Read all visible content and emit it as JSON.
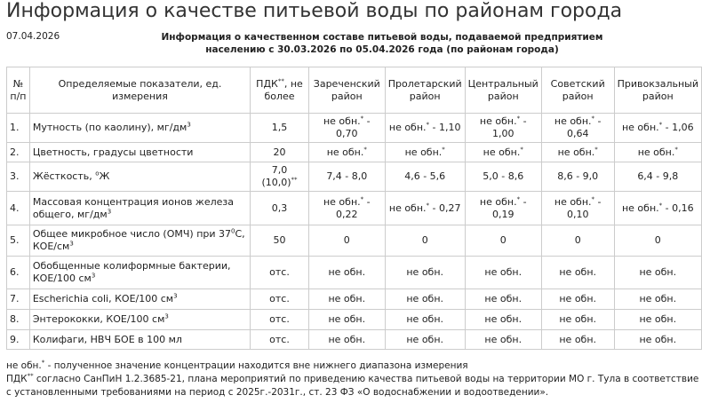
{
  "header": {
    "title": "Информация о качестве питьевой воды по районам города",
    "date": "07.04.2026",
    "subtitle": "Информация о качественном составе питьевой воды, подаваемой предприятием населению с 30.03.2026 по 05.04.2026 года (по районам города)"
  },
  "table": {
    "columns": [
      [
        "№ п/п"
      ],
      [
        "Определяемые показатели, ед. измерения"
      ],
      [
        "ПДК",
        {
          "sup": "**"
        },
        ", не более"
      ],
      [
        "Зареченский район"
      ],
      [
        "Пролетарский район"
      ],
      [
        "Центральный район"
      ],
      [
        "Советский район"
      ],
      [
        "Привокзальный район"
      ]
    ],
    "rows": [
      [
        [
          "1."
        ],
        [
          "Мутность (по каолину), мг/дм",
          {
            "sup": "3"
          }
        ],
        [
          "1,5"
        ],
        [
          "не обн.",
          {
            "sup": "*"
          },
          " - 0,70"
        ],
        [
          "не обн.",
          {
            "sup": "*"
          },
          " - 1,10"
        ],
        [
          "не обн.",
          {
            "sup": "*"
          },
          " - 1,00"
        ],
        [
          "не обн.",
          {
            "sup": "*"
          },
          " - 0,64"
        ],
        [
          "не обн.",
          {
            "sup": "*"
          },
          " - 1,06"
        ]
      ],
      [
        [
          "2."
        ],
        [
          "Цветность, градусы цветности"
        ],
        [
          "20"
        ],
        [
          "не обн.",
          {
            "sup": "*"
          }
        ],
        [
          "не обн.",
          {
            "sup": "*"
          }
        ],
        [
          "не обн.",
          {
            "sup": "*"
          }
        ],
        [
          "не обн.",
          {
            "sup": "*"
          }
        ],
        [
          "не обн.",
          {
            "sup": "*"
          }
        ]
      ],
      [
        [
          "3."
        ],
        [
          "Жёсткость, ",
          {
            "sup": "о"
          },
          "Ж"
        ],
        [
          "7,0 (10,0)",
          {
            "sup": "**"
          }
        ],
        [
          "7,4 - 8,0"
        ],
        [
          "4,6 - 5,6"
        ],
        [
          "5,0 - 8,6"
        ],
        [
          "8,6 - 9,0"
        ],
        [
          "6,4 - 9,8"
        ]
      ],
      [
        [
          "4."
        ],
        [
          "Массовая концентрация ионов железа общего, мг/дм",
          {
            "sup": "3"
          }
        ],
        [
          "0,3"
        ],
        [
          "не обн.",
          {
            "sup": "*"
          },
          " - 0,22"
        ],
        [
          "не обн.",
          {
            "sup": "*"
          },
          " - 0,27"
        ],
        [
          "не обн.",
          {
            "sup": "*"
          },
          " - 0,19"
        ],
        [
          "не обн.",
          {
            "sup": "*"
          },
          " - 0,10"
        ],
        [
          "не обн.",
          {
            "sup": "*"
          },
          " - 0,16"
        ]
      ],
      [
        [
          "5."
        ],
        [
          "Общее микробное число (ОМЧ) при 37",
          {
            "sup": "0"
          },
          "С, КОЕ/см",
          {
            "sup": "3"
          }
        ],
        [
          "50"
        ],
        [
          "0"
        ],
        [
          "0"
        ],
        [
          "0"
        ],
        [
          "0"
        ],
        [
          "0"
        ]
      ],
      [
        [
          "6."
        ],
        [
          "Обобщенные колиформные бактерии, КОЕ/100 см",
          {
            "sup": "3"
          }
        ],
        [
          "отс."
        ],
        [
          "не обн."
        ],
        [
          "не обн."
        ],
        [
          "не обн."
        ],
        [
          "не обн."
        ],
        [
          "не обн."
        ]
      ],
      [
        [
          "7."
        ],
        [
          "Escherichia coli, КОЕ/100 см",
          {
            "sup": "3"
          }
        ],
        [
          "отс."
        ],
        [
          "не обн."
        ],
        [
          "не обн."
        ],
        [
          "не обн."
        ],
        [
          "не обн."
        ],
        [
          "не обн."
        ]
      ],
      [
        [
          "8."
        ],
        [
          "Энтерококки, КОЕ/100 см",
          {
            "sup": "3"
          }
        ],
        [
          "отс."
        ],
        [
          "не обн."
        ],
        [
          "не обн."
        ],
        [
          "не обн."
        ],
        [
          "не обн."
        ],
        [
          "не обн."
        ]
      ],
      [
        [
          "9."
        ],
        [
          "Колифаги, НВЧ БОЕ в 100 мл"
        ],
        [
          "отс."
        ],
        [
          "не обн."
        ],
        [
          "не обн."
        ],
        [
          "не обн."
        ],
        [
          "не обн."
        ],
        [
          "не обн."
        ]
      ]
    ]
  },
  "footnotes": [
    [
      "не обн.",
      {
        "sup": "*"
      },
      " - полученное значение концентрации находится вне нижнего диапазона измерения"
    ],
    [
      "ПДК",
      {
        "sup": "**"
      },
      " согласно СанПиН 1.2.3685-21, плана мероприятий по приведению качества питьевой воды на территории МО г. Тула в соответствие с установленными требованиями на период с 2025г.-2031г., ст. 23 ФЗ «О водоснабжении и водоотведении»."
    ]
  ]
}
